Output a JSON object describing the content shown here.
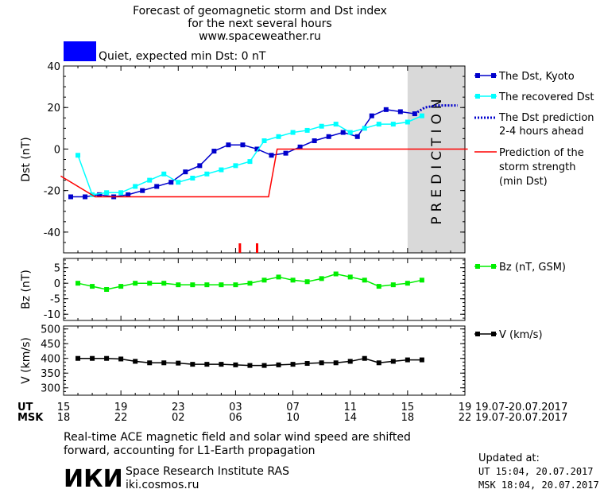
{
  "header": {
    "line1": "Forecast of geomagnetic storm and Dst index",
    "line2": "for the next several hours",
    "line3": "www.spaceweather.ru",
    "status_label": "Quiet, expected min Dst: 0 nT",
    "status_color": "#0000ff"
  },
  "chart_data": [
    {
      "type": "line",
      "ylabel": "Dst (nT)",
      "ylim": [
        -50,
        40
      ],
      "yticks": [
        -40,
        -20,
        0,
        20,
        40
      ],
      "x_range_hours": [
        15,
        43
      ],
      "prediction_label": "PREDICTION",
      "prediction_start_hour": 39,
      "series": [
        {
          "name": "The Dst, Kyoto",
          "color": "#0000cc",
          "marker": "square",
          "x": [
            15.5,
            16.5,
            17.5,
            18.5,
            19.5,
            20.5,
            21.5,
            22.5,
            23.5,
            24.5,
            25.5,
            26.5,
            27.5,
            28.5,
            29.5,
            30.5,
            31.5,
            32.5,
            33.5,
            34.5,
            35.5,
            36.5,
            37.5,
            38.5,
            39.5
          ],
          "values": [
            -23,
            -23,
            -22,
            -23,
            -22,
            -20,
            -18,
            -16,
            -11,
            -8,
            -1,
            2,
            2,
            0,
            -3,
            -2,
            1,
            4,
            6,
            8,
            6,
            16,
            19,
            18,
            17
          ]
        },
        {
          "name": "The recovered Dst",
          "color": "#00ffff",
          "marker": "square",
          "x": [
            16,
            17,
            18,
            19,
            20,
            21,
            22,
            23,
            24,
            25,
            26,
            27,
            28,
            29,
            30,
            31,
            32,
            33,
            34,
            35,
            36,
            37,
            38,
            39,
            40
          ],
          "values": [
            -3,
            -22,
            -21,
            -21,
            -18,
            -15,
            -12,
            -16,
            -14,
            -12,
            -10,
            -8,
            -6,
            4,
            6,
            8,
            9,
            11,
            12,
            8,
            10,
            12,
            12,
            13,
            16
          ]
        },
        {
          "name": "The Dst prediction",
          "name2": "2-4 hours ahead",
          "color": "#0000cc",
          "style": "dotted",
          "x": [
            39.5,
            40.2,
            41,
            42,
            42.5
          ],
          "values": [
            17,
            20,
            21,
            21,
            21
          ]
        },
        {
          "name": "Prediction of the",
          "name2": "storm strength",
          "name3": "(min Dst)",
          "color": "#ff0000",
          "x": [
            14.8,
            17.2,
            29.3,
            29.9,
            43.2
          ],
          "values": [
            -13,
            -23,
            -23,
            0,
            0
          ]
        }
      ],
      "markers_hours": [
        27.3,
        28.5
      ]
    },
    {
      "type": "line",
      "ylabel": "Bz (nT)",
      "ylim": [
        -12,
        8
      ],
      "yticks": [
        -10,
        -5,
        0,
        5
      ],
      "series": [
        {
          "name": "Bz (nT, GSM)",
          "color": "#00ee00",
          "marker": "square",
          "x": [
            16,
            17,
            18,
            19,
            20,
            21,
            22,
            23,
            24,
            25,
            26,
            27,
            28,
            29,
            30,
            31,
            32,
            33,
            34,
            35,
            36,
            37,
            38,
            39,
            40
          ],
          "values": [
            0,
            -1,
            -2,
            -1,
            0,
            0,
            0,
            -0.5,
            -0.5,
            -0.5,
            -0.5,
            -0.5,
            0,
            1,
            2,
            1,
            0.5,
            1.5,
            3,
            2,
            1,
            -1,
            -0.5,
            0,
            1
          ]
        }
      ]
    },
    {
      "type": "line",
      "ylabel": "V (km/s)",
      "ylim": [
        275,
        510
      ],
      "yticks": [
        300,
        350,
        400,
        450,
        500
      ],
      "series": [
        {
          "name": "V (km/s)",
          "color": "#000000",
          "marker": "square",
          "x": [
            16,
            17,
            18,
            19,
            20,
            21,
            22,
            23,
            24,
            25,
            26,
            27,
            28,
            29,
            30,
            31,
            32,
            33,
            34,
            35,
            36,
            37,
            38,
            39,
            40
          ],
          "values": [
            400,
            400,
            400,
            398,
            390,
            385,
            385,
            384,
            380,
            380,
            380,
            378,
            376,
            376,
            378,
            380,
            383,
            385,
            385,
            390,
            400,
            385,
            390,
            395,
            395
          ]
        }
      ]
    }
  ],
  "time_axis": {
    "ut_label": "UT",
    "msk_label": "MSK",
    "ut_ticks": [
      "15",
      "19",
      "23",
      "03",
      "07",
      "11",
      "15",
      "19"
    ],
    "msk_ticks": [
      "18",
      "22",
      "02",
      "06",
      "10",
      "14",
      "18",
      "22"
    ],
    "ut_date_range": "19.07-20.07.2017",
    "msk_date_range": "19.07-20.07.2017"
  },
  "footer": {
    "note1": "Real-time ACE magnetic field and solar wind speed are shifted",
    "note2": "forward, accounting for L1-Earth propagation",
    "logo_text": "ИКИ",
    "institute": "Space Research Institute RAS",
    "site": "iki.cosmos.ru",
    "updated_label": "Updated at:",
    "updated_ut": "UT   15:04, 20.07.2017",
    "updated_msk": "MSK 18:04, 20.07.2017"
  }
}
